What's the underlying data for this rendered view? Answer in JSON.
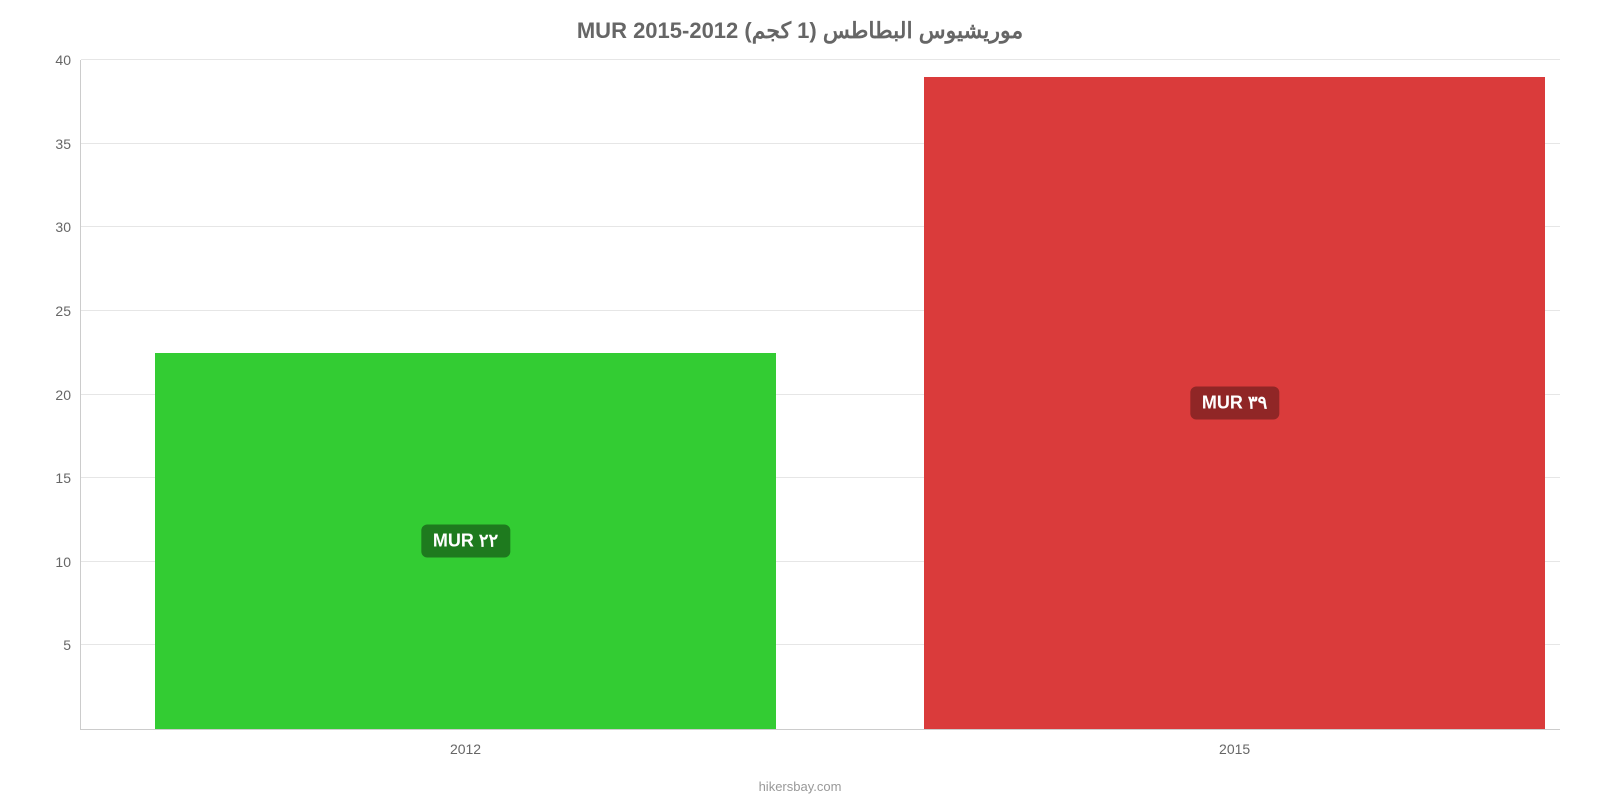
{
  "chart": {
    "type": "bar",
    "title": "موريشيوس البطاطس (1 كجم) MUR 2015-2012",
    "title_fontsize": 22,
    "title_color": "#666666",
    "background_color": "#ffffff",
    "grid_color": "#e6e6e6",
    "axis_color": "#cccccc",
    "tick_label_color": "#666666",
    "tick_label_fontsize": 14,
    "y": {
      "min": 0,
      "max": 40,
      "ticks": [
        0,
        5,
        10,
        15,
        20,
        25,
        30,
        35,
        40
      ]
    },
    "x": {
      "categories": [
        "2012",
        "2015"
      ]
    },
    "bars": [
      {
        "category": "2012",
        "value": 22.5,
        "color": "#33cc33",
        "label": "٢٢ MUR",
        "label_bg": "#1e7a1e",
        "label_fontsize": 18,
        "left_pct": 5,
        "width_pct": 42
      },
      {
        "category": "2015",
        "value": 39,
        "color": "#da3b3b",
        "label": "٣٩ MUR",
        "label_bg": "#902626",
        "label_fontsize": 18,
        "left_pct": 57,
        "width_pct": 42
      }
    ],
    "credit": "hikersbay.com",
    "credit_fontsize": 13,
    "credit_color": "#999999"
  }
}
